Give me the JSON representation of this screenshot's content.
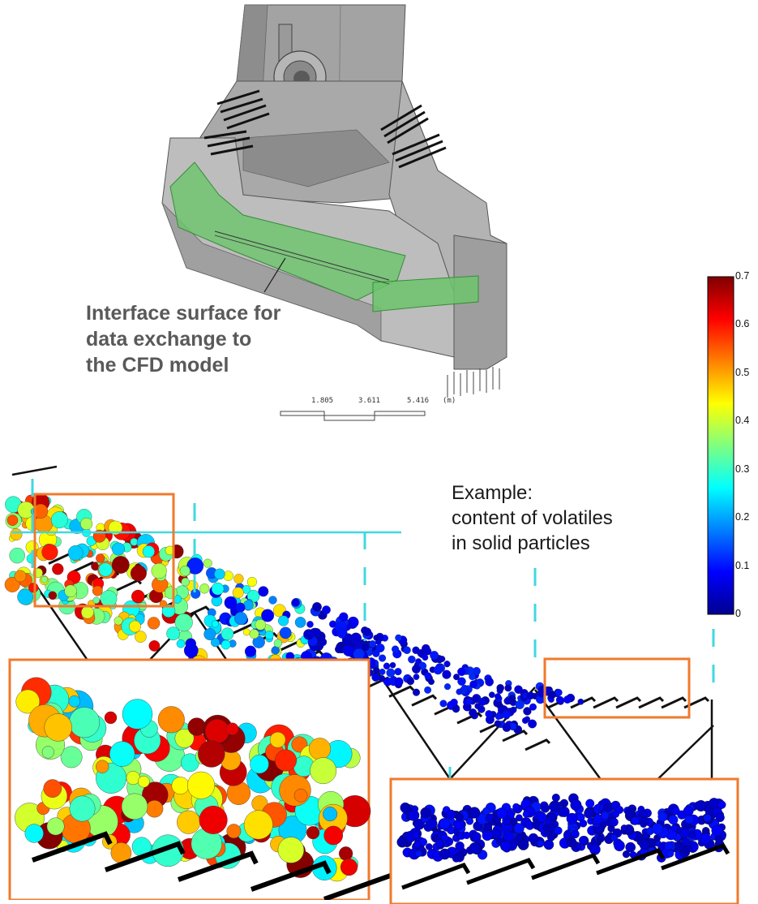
{
  "annotation": {
    "interface_lines": [
      "Interface surface for",
      "data exchange to",
      "the CFD model"
    ]
  },
  "example": {
    "lines": [
      "Example:",
      "content of volatiles",
      "in solid particles"
    ]
  },
  "scale_bar": {
    "ticks": [
      "1.805",
      "3.611",
      "5.416"
    ],
    "unit": "(m)"
  },
  "colorbar": {
    "ticks": [
      "0.7",
      "0.6",
      "0.5",
      "0.4",
      "0.3",
      "0.2",
      "0.1",
      "0"
    ],
    "min": 0,
    "max": 0.7,
    "colormap": "jet"
  },
  "colors": {
    "callout_box": "#f07a2c",
    "section_divider": "#40d8e0",
    "model_fill": "#a8a8a8",
    "interface_surface": "#6cc46c",
    "particles_high": "#7a1414",
    "particles_low": "#1a1a9a"
  }
}
